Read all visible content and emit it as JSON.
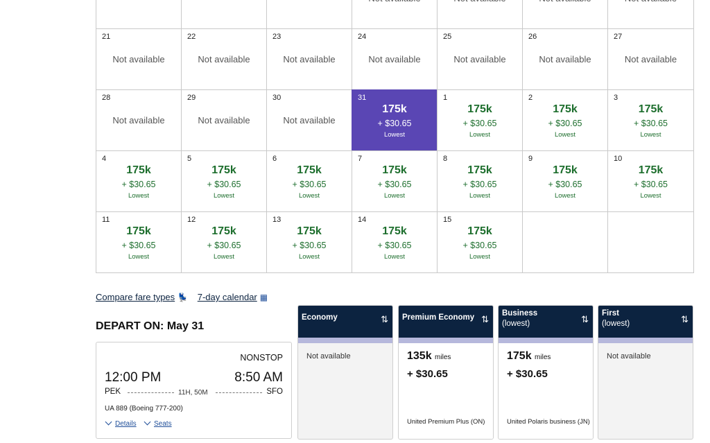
{
  "calendar": {
    "rows": [
      [
        {
          "day": "",
          "status": "empty"
        },
        {
          "day": "",
          "status": "empty"
        },
        {
          "day": "",
          "status": "empty"
        },
        {
          "day": "",
          "status": "na",
          "text": "Not available"
        },
        {
          "day": "",
          "status": "na",
          "text": "Not available"
        },
        {
          "day": "",
          "status": "na",
          "text": "Not available"
        },
        {
          "day": "",
          "status": "na",
          "text": "Not available"
        }
      ],
      [
        {
          "day": "21",
          "status": "na",
          "text": "Not available"
        },
        {
          "day": "22",
          "status": "na",
          "text": "Not available"
        },
        {
          "day": "23",
          "status": "na",
          "text": "Not available"
        },
        {
          "day": "24",
          "status": "na",
          "text": "Not available"
        },
        {
          "day": "25",
          "status": "na",
          "text": "Not available"
        },
        {
          "day": "26",
          "status": "na",
          "text": "Not available"
        },
        {
          "day": "27",
          "status": "na",
          "text": "Not available"
        }
      ],
      [
        {
          "day": "28",
          "status": "na",
          "text": "Not available"
        },
        {
          "day": "29",
          "status": "na",
          "text": "Not available"
        },
        {
          "day": "30",
          "status": "na",
          "text": "Not available"
        },
        {
          "day": "31",
          "status": "fare",
          "selected": true,
          "miles": "175k",
          "price": "+ $30.65",
          "tag": "Lowest"
        },
        {
          "day": "1",
          "status": "fare",
          "miles": "175k",
          "price": "+ $30.65",
          "tag": "Lowest"
        },
        {
          "day": "2",
          "status": "fare",
          "miles": "175k",
          "price": "+ $30.65",
          "tag": "Lowest"
        },
        {
          "day": "3",
          "status": "fare",
          "miles": "175k",
          "price": "+ $30.65",
          "tag": "Lowest"
        }
      ],
      [
        {
          "day": "4",
          "status": "fare",
          "miles": "175k",
          "price": "+ $30.65",
          "tag": "Lowest"
        },
        {
          "day": "5",
          "status": "fare",
          "miles": "175k",
          "price": "+ $30.65",
          "tag": "Lowest"
        },
        {
          "day": "6",
          "status": "fare",
          "miles": "175k",
          "price": "+ $30.65",
          "tag": "Lowest"
        },
        {
          "day": "7",
          "status": "fare",
          "miles": "175k",
          "price": "+ $30.65",
          "tag": "Lowest"
        },
        {
          "day": "8",
          "status": "fare",
          "miles": "175k",
          "price": "+ $30.65",
          "tag": "Lowest"
        },
        {
          "day": "9",
          "status": "fare",
          "miles": "175k",
          "price": "+ $30.65",
          "tag": "Lowest"
        },
        {
          "day": "10",
          "status": "fare",
          "miles": "175k",
          "price": "+ $30.65",
          "tag": "Lowest"
        }
      ],
      [
        {
          "day": "11",
          "status": "fare",
          "miles": "175k",
          "price": "+ $30.65",
          "tag": "Lowest"
        },
        {
          "day": "12",
          "status": "fare",
          "miles": "175k",
          "price": "+ $30.65",
          "tag": "Lowest"
        },
        {
          "day": "13",
          "status": "fare",
          "miles": "175k",
          "price": "+ $30.65",
          "tag": "Lowest"
        },
        {
          "day": "14",
          "status": "fare",
          "miles": "175k",
          "price": "+ $30.65",
          "tag": "Lowest"
        },
        {
          "day": "15",
          "status": "fare",
          "miles": "175k",
          "price": "+ $30.65",
          "tag": "Lowest"
        },
        {
          "day": "",
          "status": "empty"
        },
        {
          "day": "",
          "status": "empty"
        }
      ]
    ]
  },
  "links": {
    "compare": "Compare fare types",
    "compare_icon": "seat-icon",
    "calendar7": "7-day calendar",
    "calendar7_icon": "calendar-icon"
  },
  "depart_label": "DEPART ON: May 31",
  "flight": {
    "nonstop": "NONSTOP",
    "dep_time": "12:00 PM",
    "arr_time": "8:50 AM",
    "origin": "PEK",
    "destination": "SFO",
    "duration": "11H, 50M",
    "flight_info": "UA 889 (Boeing 777-200)",
    "details": "Details",
    "seats": "Seats"
  },
  "fares": [
    {
      "name": "Economy",
      "sub": "",
      "available": false,
      "text": "Not available"
    },
    {
      "name": "Premium Economy",
      "sub": "",
      "available": true,
      "miles": "135k",
      "miles_unit": "miles",
      "price": "+ $30.65",
      "fare_name": "United Premium Plus (ON)"
    },
    {
      "name": "Business",
      "sub": "(lowest)",
      "available": true,
      "miles": "175k",
      "miles_unit": "miles",
      "price": "+ $30.65",
      "fare_name": "United Polaris business (JN)"
    },
    {
      "name": "First",
      "sub": "(lowest)",
      "available": false,
      "text": "Not available"
    }
  ],
  "colors": {
    "selected_day": "#5a46b4",
    "fare_green": "#1d6e2d",
    "header_navy": "#0c2340",
    "header_strip": "#b6b8dc"
  }
}
